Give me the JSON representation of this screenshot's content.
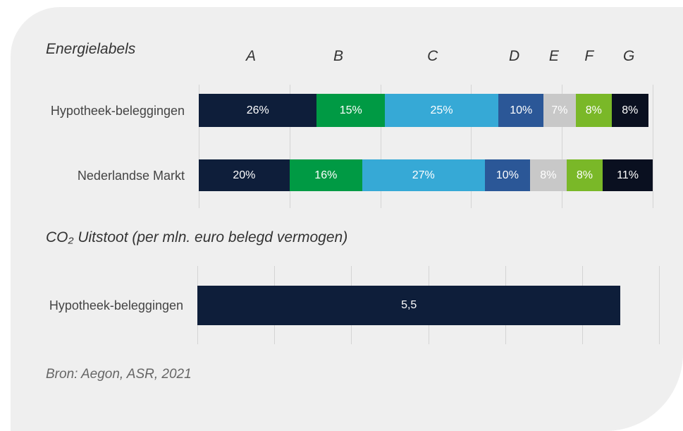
{
  "chart_data": [
    {
      "type": "stacked_hbar",
      "title": "Energielabels",
      "categories": [
        "Hypotheek-beleggingen",
        "Nederlandse Markt"
      ],
      "series": [
        {
          "name": "A",
          "color": "#0e1e3a",
          "values": [
            26,
            20
          ],
          "value_labels": [
            "26%",
            "20%"
          ]
        },
        {
          "name": "B",
          "color": "#009a44",
          "values": [
            15,
            16
          ],
          "value_labels": [
            "15%",
            "16%"
          ]
        },
        {
          "name": "C",
          "color": "#36a9d6",
          "values": [
            25,
            27
          ],
          "value_labels": [
            "25%",
            "27%"
          ]
        },
        {
          "name": "D",
          "color": "#2b5797",
          "values": [
            10,
            10
          ],
          "value_labels": [
            "10%",
            "10%"
          ]
        },
        {
          "name": "E",
          "color": "#c8c8c8",
          "values": [
            7,
            8
          ],
          "value_labels": [
            "7%",
            "8%"
          ]
        },
        {
          "name": "F",
          "color": "#7ab828",
          "values": [
            8,
            8
          ],
          "value_labels": [
            "8%",
            "8%"
          ]
        },
        {
          "name": "G",
          "color": "#0a1020",
          "values": [
            8,
            11
          ],
          "value_labels": [
            "8%",
            "11%"
          ]
        }
      ],
      "xlim": [
        0,
        100
      ],
      "xticks": [
        0,
        20,
        40,
        60,
        80,
        100
      ],
      "grid": true
    },
    {
      "type": "hbar",
      "title": "CO₂ Uitstoot (per mln. euro belegd vermogen)",
      "categories": [
        "Hypotheek-beleggingen"
      ],
      "values": [
        5.5
      ],
      "value_labels": [
        "5,5"
      ],
      "color": "#0e1e3a",
      "xlim": [
        0,
        6
      ],
      "xticks": [
        0,
        1,
        2,
        3,
        4,
        5,
        6
      ],
      "grid": true
    }
  ],
  "source": "Bron: Aegon, ASR, 2021"
}
